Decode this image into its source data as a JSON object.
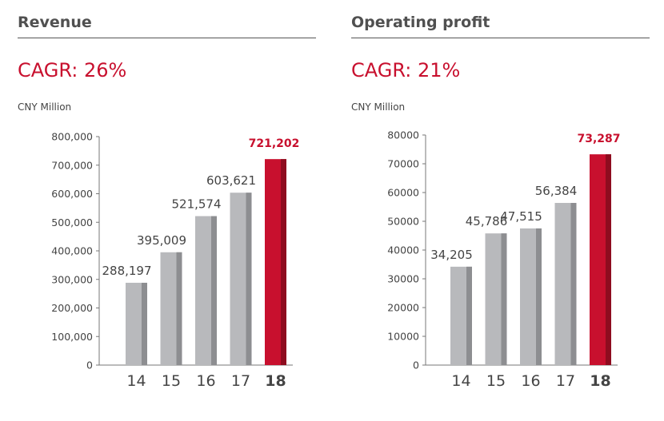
{
  "colors": {
    "bar": "#b8b9bc",
    "bar_shade": "#8d8e91",
    "highlight": "#c8102e",
    "highlight_shade": "#8e0c1f",
    "axis": "#777777",
    "text": "#444444"
  },
  "chart_data": [
    {
      "type": "bar",
      "title": "Revenue",
      "subtitle": "CAGR: 26%",
      "ylabel": "CNY Million",
      "categories": [
        "14",
        "15",
        "16",
        "17",
        "18"
      ],
      "values": [
        288197,
        395009,
        521574,
        603621,
        721202
      ],
      "value_labels": [
        "288,197",
        "395,009",
        "521,574",
        "603,621",
        "721,202"
      ],
      "highlight_index": 4,
      "ylim": [
        0,
        800000
      ],
      "yticks": [
        0,
        100000,
        200000,
        300000,
        400000,
        500000,
        600000,
        700000,
        800000
      ],
      "ytick_labels": [
        "0",
        "100,000",
        "200,000",
        "300,000",
        "400,000",
        "500,000",
        "600,000",
        "700,000",
        "800,000"
      ],
      "grid": false,
      "legend": "none"
    },
    {
      "type": "bar",
      "title": "Operating profit",
      "subtitle": "CAGR: 21%",
      "ylabel": "CNY Million",
      "categories": [
        "14",
        "15",
        "16",
        "17",
        "18"
      ],
      "values": [
        34205,
        45786,
        47515,
        56384,
        73287
      ],
      "value_labels": [
        "34,205",
        "45,786",
        "47,515",
        "56,384",
        "73,287"
      ],
      "highlight_index": 4,
      "ylim": [
        0,
        80000
      ],
      "yticks": [
        0,
        10000,
        20000,
        30000,
        40000,
        50000,
        60000,
        70000,
        80000
      ],
      "ytick_labels": [
        "0",
        "10000",
        "20000",
        "30000",
        "40000",
        "50000",
        "60000",
        "70000",
        "80000"
      ],
      "grid": false,
      "legend": "none"
    }
  ]
}
